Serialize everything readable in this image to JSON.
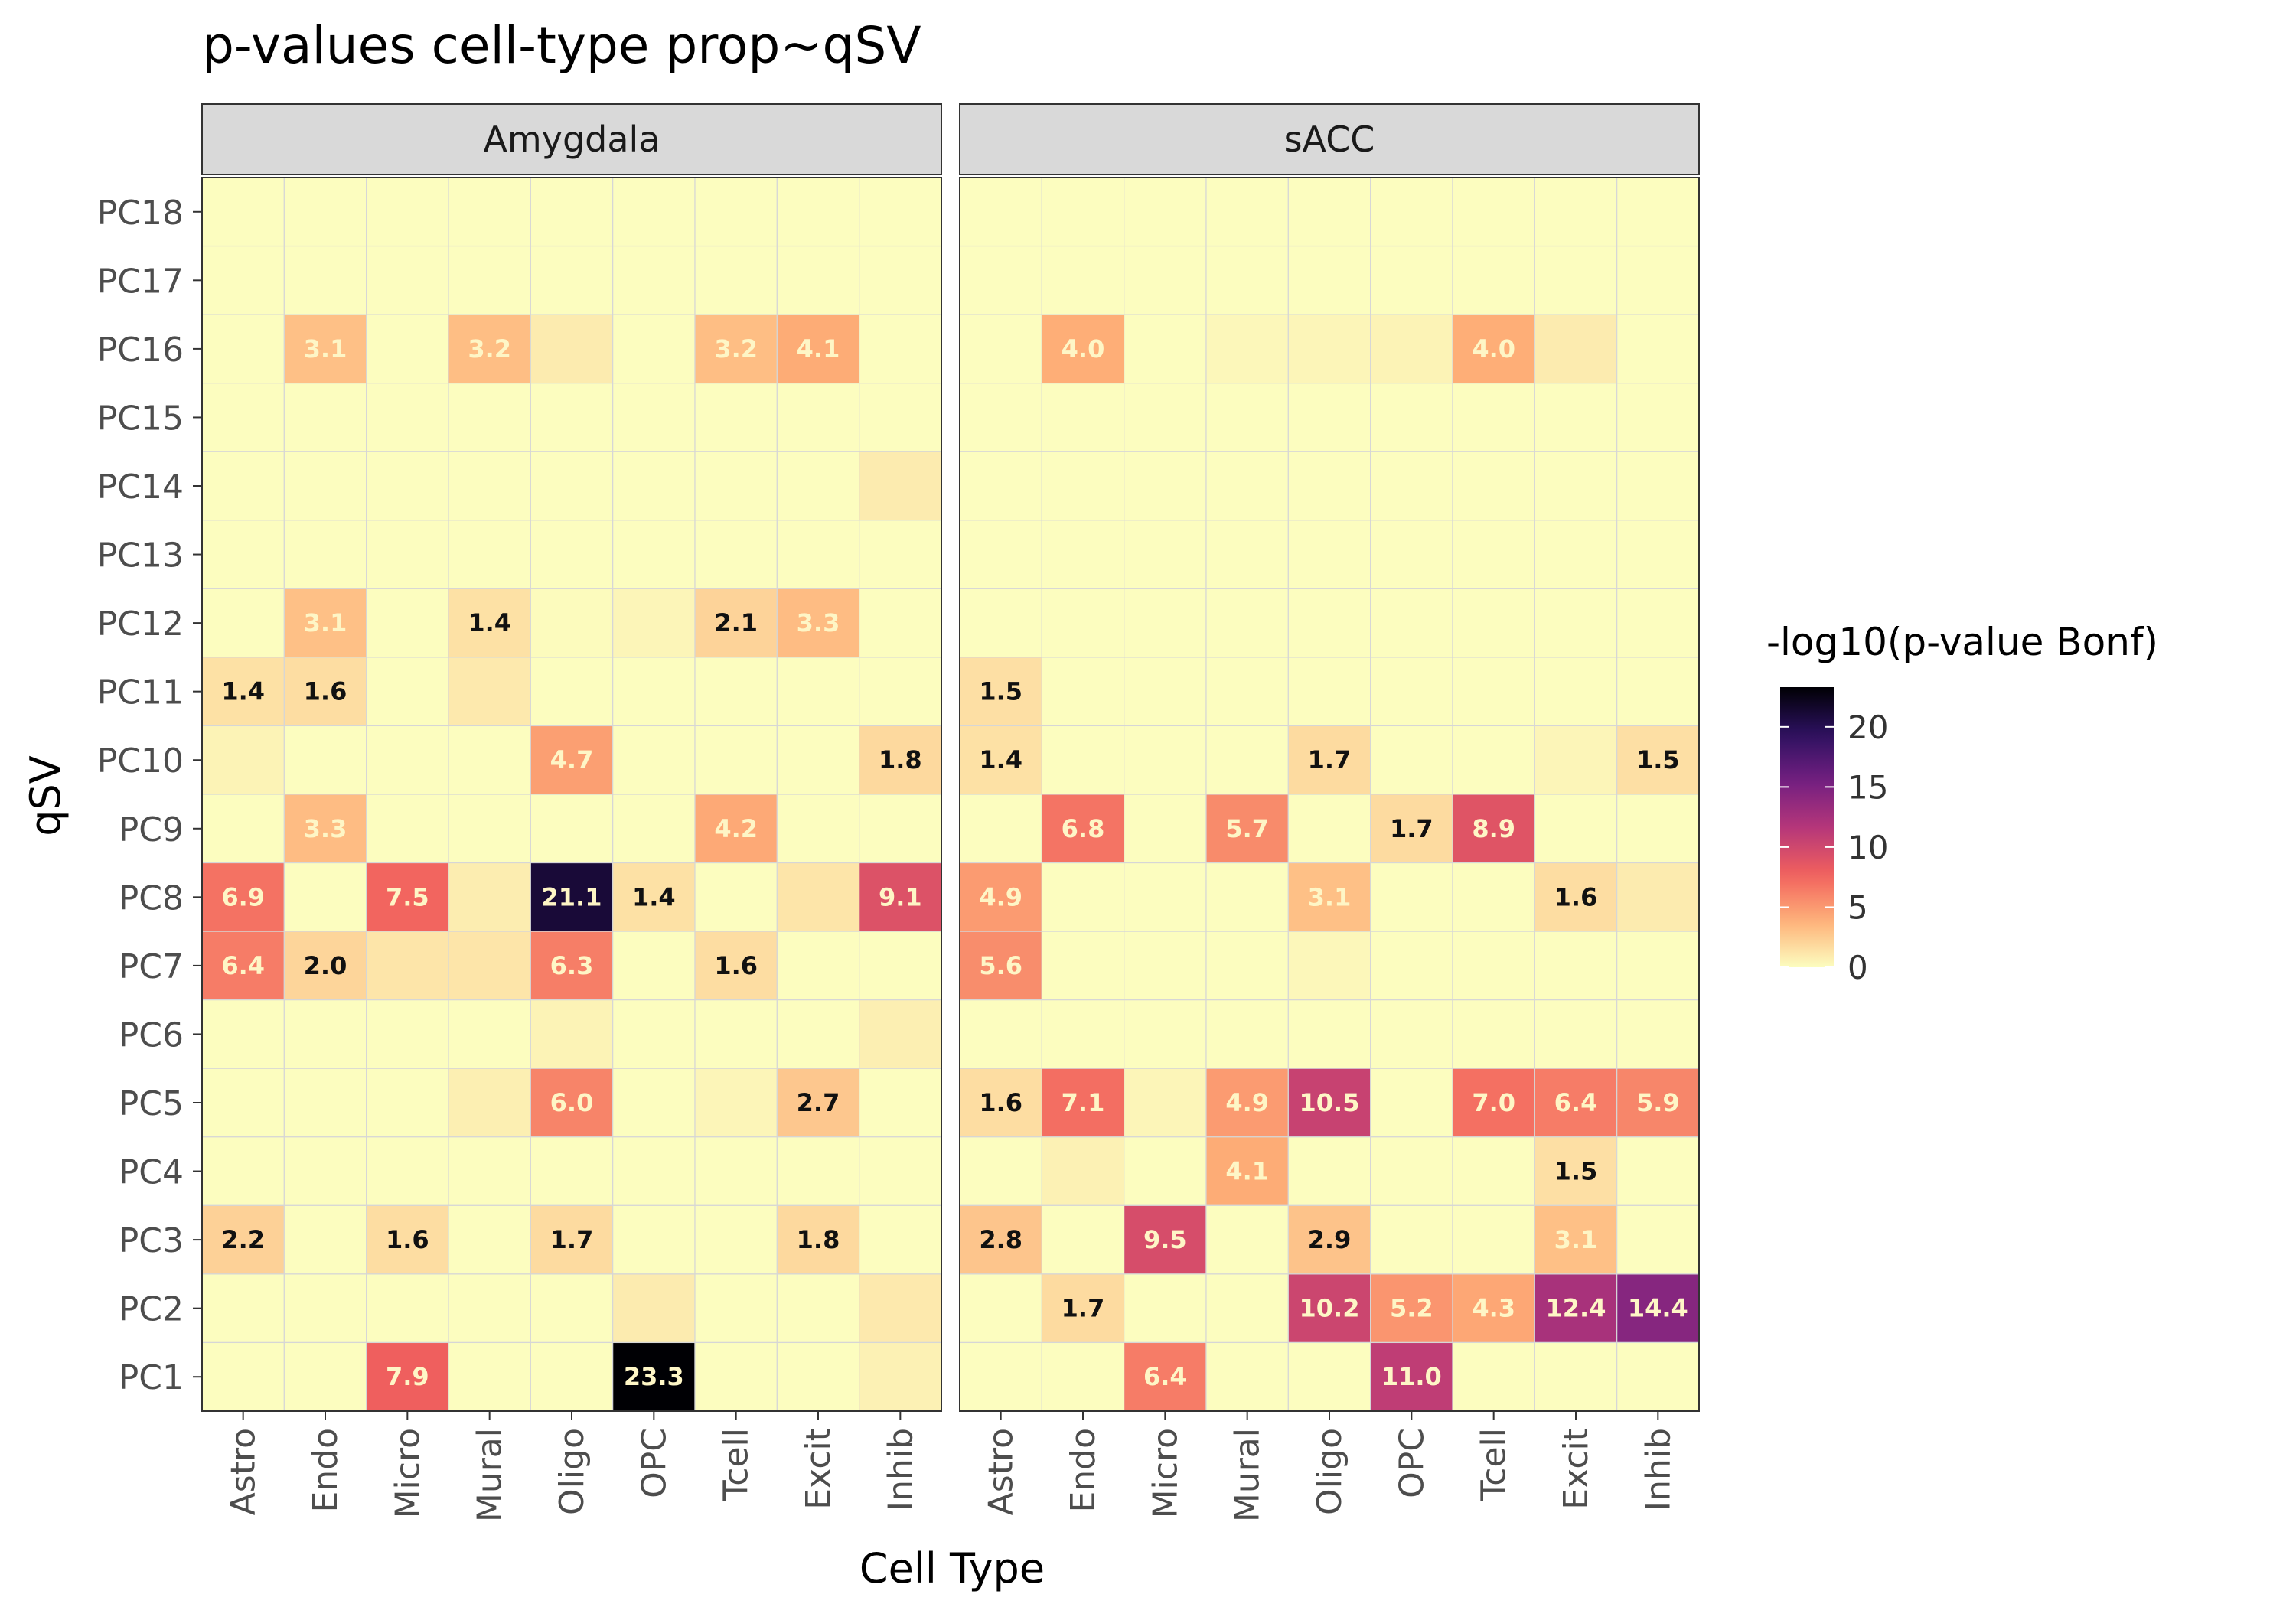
{
  "chart_data": {
    "type": "heatmap",
    "title": "p-values cell-type prop~qSV",
    "xlabel": "Cell Type",
    "ylabel": "qSV",
    "legend_title": "-log10(p-value Bonf)",
    "legend_ticks": [
      0,
      5,
      10,
      15,
      20
    ],
    "legend_range": [
      0,
      23.3
    ],
    "legend_placement": "right",
    "colormap": "magma-reversed",
    "colors": [
      "#fcfdbf",
      "#feb078",
      "#f1605d",
      "#b5367a",
      "#721f81",
      "#2c115f",
      "#000004"
    ],
    "cell_types": [
      "Astro",
      "Endo",
      "Micro",
      "Mural",
      "Oligo",
      "OPC",
      "Tcell",
      "Excit",
      "Inhib"
    ],
    "qsvs": [
      "PC18",
      "PC17",
      "PC16",
      "PC15",
      "PC14",
      "PC13",
      "PC12",
      "PC11",
      "PC10",
      "PC9",
      "PC8",
      "PC7",
      "PC6",
      "PC5",
      "PC4",
      "PC3",
      "PC2",
      "PC1"
    ],
    "label_threshold": 1.3,
    "panels": [
      {
        "name": "Amygdala",
        "values": [
          [
            0,
            0,
            0,
            0,
            0,
            0,
            0,
            0,
            0
          ],
          [
            0,
            0,
            0,
            0,
            0,
            0,
            0,
            0,
            0
          ],
          [
            0,
            3.1,
            0,
            3.2,
            0.9,
            0,
            3.2,
            4.1,
            0
          ],
          [
            0,
            0,
            0,
            0,
            0,
            0,
            0,
            0,
            0
          ],
          [
            0,
            0,
            0,
            0,
            0,
            0,
            0,
            0,
            0.9
          ],
          [
            0,
            0,
            0,
            0,
            0,
            0,
            0,
            0,
            0
          ],
          [
            0,
            3.1,
            0,
            1.4,
            0.1,
            0.4,
            2.1,
            3.3,
            0
          ],
          [
            1.4,
            1.6,
            0,
            1.0,
            0,
            0,
            0,
            0,
            0
          ],
          [
            0.5,
            0,
            0,
            0,
            4.7,
            0,
            0,
            0,
            1.8
          ],
          [
            0,
            3.3,
            0,
            0,
            0,
            0,
            4.2,
            0,
            0
          ],
          [
            6.9,
            0,
            7.5,
            0.8,
            21.1,
            1.4,
            0,
            1.2,
            9.1
          ],
          [
            6.4,
            2.0,
            1.2,
            1.2,
            6.3,
            0,
            1.6,
            0,
            0
          ],
          [
            0,
            0,
            0,
            0,
            0.5,
            0,
            0,
            0,
            0.7
          ],
          [
            0,
            0,
            0,
            0.7,
            6.0,
            0,
            0.4,
            2.7,
            0
          ],
          [
            0,
            0,
            0,
            0,
            0,
            0,
            0,
            0,
            0
          ],
          [
            2.2,
            0,
            1.6,
            0,
            1.7,
            0,
            0,
            1.8,
            0
          ],
          [
            0,
            0,
            0,
            0,
            0,
            0.9,
            0,
            0,
            1.0
          ],
          [
            0,
            0,
            7.9,
            0,
            0,
            23.3,
            0,
            0,
            0.6
          ]
        ]
      },
      {
        "name": "sACC",
        "values": [
          [
            0,
            0,
            0,
            0,
            0,
            0,
            0,
            0,
            0
          ],
          [
            0,
            0,
            0,
            0,
            0,
            0,
            0,
            0,
            0
          ],
          [
            0,
            4.0,
            0,
            0.3,
            0.4,
            0.5,
            4.0,
            0.9,
            0
          ],
          [
            0,
            0,
            0,
            0,
            0,
            0,
            0,
            0,
            0
          ],
          [
            0,
            0,
            0,
            0,
            0,
            0,
            0,
            0,
            0
          ],
          [
            0,
            0,
            0,
            0,
            0,
            0,
            0,
            0,
            0
          ],
          [
            0,
            0,
            0,
            0,
            0,
            0,
            0,
            0,
            0
          ],
          [
            1.5,
            0,
            0,
            0,
            0,
            0,
            0,
            0,
            0
          ],
          [
            1.4,
            0,
            0,
            0,
            1.7,
            0,
            0,
            0.4,
            1.5
          ],
          [
            0,
            6.8,
            0,
            5.7,
            0,
            1.7,
            8.9,
            0,
            0
          ],
          [
            4.9,
            0,
            0,
            0,
            3.1,
            0,
            0,
            1.6,
            0.9
          ],
          [
            5.6,
            0,
            0,
            0,
            0.3,
            0,
            0,
            0,
            0
          ],
          [
            0,
            0,
            0,
            0,
            0,
            0,
            0,
            0,
            0
          ],
          [
            1.6,
            7.1,
            0.4,
            4.9,
            10.5,
            0,
            7.0,
            6.4,
            5.9
          ],
          [
            0,
            0.6,
            0,
            4.1,
            0,
            0,
            0,
            1.5,
            0
          ],
          [
            2.8,
            0,
            9.5,
            0,
            2.9,
            0,
            0,
            3.1,
            0
          ],
          [
            0,
            1.7,
            0,
            0,
            10.2,
            5.2,
            4.3,
            12.4,
            14.4
          ],
          [
            0,
            0,
            6.4,
            0,
            0,
            11.0,
            0,
            0,
            0
          ]
        ]
      }
    ]
  }
}
